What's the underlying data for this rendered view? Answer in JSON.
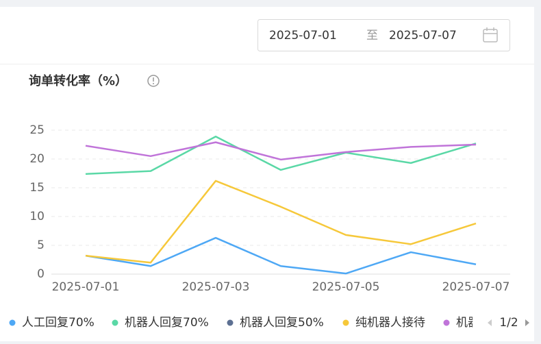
{
  "header": {
    "date_start": "2025-07-01",
    "date_separator": "至",
    "date_end": "2025-07-07"
  },
  "chart_data": {
    "type": "line",
    "title": "询单转化率（%）",
    "categories": [
      "2025-07-01",
      null,
      "2025-07-03",
      null,
      "2025-07-05",
      null,
      "2025-07-07"
    ],
    "series": [
      {
        "name": "人工回复70%",
        "color": "#4ea8f5",
        "values": [
          3.2,
          1.4,
          6.3,
          1.4,
          0.1,
          3.8,
          1.7
        ]
      },
      {
        "name": "机器人回复70%",
        "color": "#5ad8a6",
        "values": [
          17.4,
          17.9,
          23.9,
          18.1,
          21.1,
          19.3,
          22.7
        ]
      },
      {
        "name": "机器人回复50%",
        "color": "#5d7092",
        "values": [
          null,
          null,
          null,
          null,
          null,
          null,
          null
        ]
      },
      {
        "name": "纯机器人接待",
        "color": "#f6c83a",
        "values": [
          3.2,
          2.0,
          16.2,
          11.7,
          6.8,
          5.2,
          8.8
        ]
      },
      {
        "name": "机器",
        "color": "#c074d9",
        "values": [
          22.3,
          20.5,
          22.9,
          19.9,
          21.2,
          22.1,
          22.5
        ]
      }
    ],
    "ylim": [
      0,
      25
    ],
    "yticks": [
      0,
      5,
      10,
      15,
      20,
      25
    ],
    "grid": true,
    "legend_page": "1/2"
  }
}
